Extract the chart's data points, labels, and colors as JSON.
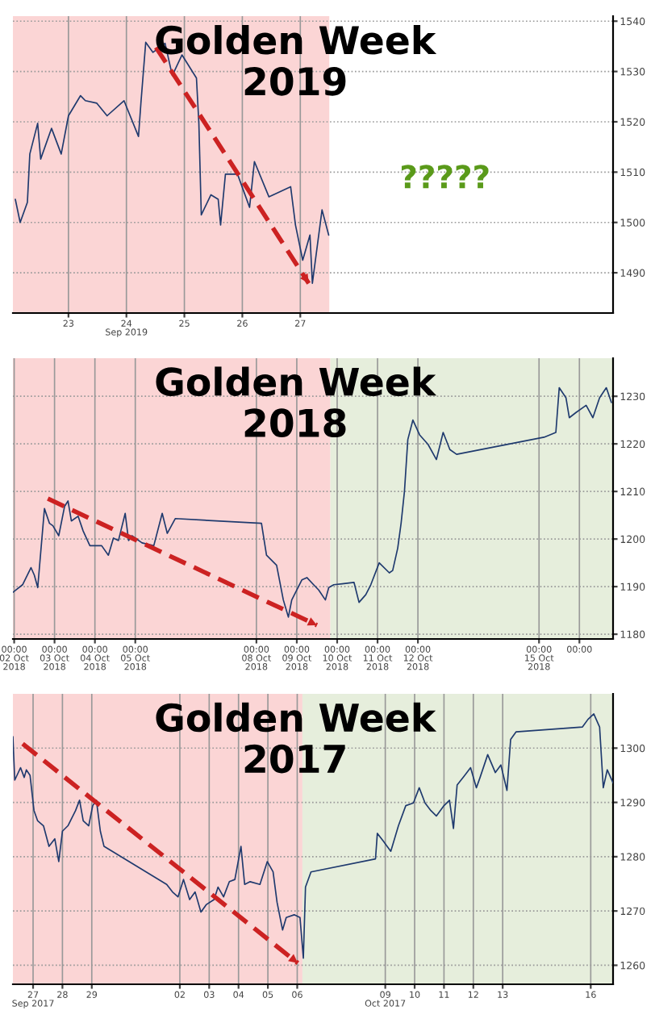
{
  "chart_data": [
    {
      "type": "line",
      "title": "Golden Week\n2019",
      "xlim": [
        "2019-09-22T13:00",
        "2019-10-02T21:30"
      ],
      "ylim": [
        1482,
        1541
      ],
      "xticks": [
        {
          "value": "2019-09-23T12:00",
          "label": "23"
        },
        {
          "value": "2019-09-24T12:00",
          "label": "24\nSep 2019"
        },
        {
          "value": "2019-09-25T12:00",
          "label": "25"
        },
        {
          "value": "2019-09-26T12:00",
          "label": "26"
        },
        {
          "value": "2019-09-27T12:00",
          "label": "27"
        }
      ],
      "yticks": [
        1490,
        1500,
        1510,
        1520,
        1530,
        1540
      ],
      "grid": true,
      "marker": "none",
      "bands": [
        {
          "axis": "x",
          "from": "2019-09-22T13:00",
          "to": "2019-09-28T00:00",
          "color": "#fbd5d5"
        }
      ],
      "annotations": [
        "?????"
      ],
      "series": [
        {
          "color": "#1f3a6e",
          "line_style": "solid",
          "x": [
            "2019-09-22T14:00",
            "2019-09-22T16:00",
            "2019-09-22T19:00",
            "2019-09-22T20:00",
            "2019-09-22T23:15",
            "2019-09-23T00:30",
            "2019-09-23T05:00",
            "2019-09-23T09:00",
            "2019-09-23T12:00",
            "2019-09-23T17:00",
            "2019-09-23T19:00",
            "2019-09-23T23:45",
            "2019-09-24T04:00",
            "2019-09-24T11:00",
            "2019-09-24T17:00",
            "2019-09-24T18:00",
            "2019-09-24T20:00",
            "2019-09-24T23:00",
            "2019-09-25T04:00",
            "2019-09-25T07:00",
            "2019-09-25T11:00",
            "2019-09-25T17:00",
            "2019-09-25T18:00",
            "2019-09-25T19:00",
            "2019-09-25T23:00",
            "2019-09-26T02:00",
            "2019-09-26T03:00",
            "2019-09-26T05:00",
            "2019-09-26T10:00",
            "2019-09-26T15:00",
            "2019-09-26T17:00",
            "2019-09-26T23:00",
            "2019-09-27T08:00",
            "2019-09-27T10:00",
            "2019-09-27T13:00",
            "2019-09-27T16:00",
            "2019-09-27T17:00",
            "2019-09-27T21:00",
            "2019-09-27T23:45"
          ],
          "values": [
            1504.6,
            1500.0,
            1504.0,
            1513.6,
            1519.7,
            1512.6,
            1518.7,
            1513.6,
            1521.2,
            1525.2,
            1524.2,
            1523.7,
            1521.2,
            1524.2,
            1517.1,
            1523.7,
            1535.8,
            1533.8,
            1535.6,
            1529.2,
            1533.3,
            1528.7,
            1519.7,
            1501.5,
            1505.5,
            1504.6,
            1499.5,
            1509.6,
            1509.6,
            1503.0,
            1512.1,
            1505.1,
            1507.1,
            1499.5,
            1492.5,
            1497.5,
            1487.9,
            1502.5,
            1497.5
          ]
        },
        {
          "type": "line",
          "color": "#cc2222",
          "line_style": "dashed",
          "x": [
            "2019-09-25T00:15",
            "2019-09-27T15:30"
          ],
          "values": [
            1534.8,
            1487.9
          ]
        }
      ]
    },
    {
      "type": "line",
      "title": "Golden Week\n2018",
      "xlim": [
        "2018-10-01T23:15",
        "2018-10-16T20:00"
      ],
      "ylim": [
        1179,
        1238
      ],
      "xticks": [
        {
          "value": "2018-10-02T00:00",
          "label": "00:00\n02 Oct\n2018"
        },
        {
          "value": "2018-10-03T00:00",
          "label": "00:00\n03 Oct\n2018"
        },
        {
          "value": "2018-10-04T00:00",
          "label": "00:00\n04 Oct\n2018"
        },
        {
          "value": "2018-10-05T00:00",
          "label": "00:00\n05 Oct\n2018"
        },
        {
          "value": "2018-10-08T00:00",
          "label": "00:00\n08 Oct\n2018"
        },
        {
          "value": "2018-10-09T00:00",
          "label": "00:00\n09 Oct\n2018"
        },
        {
          "value": "2018-10-10T00:00",
          "label": "00:00\n10 Oct\n2018"
        },
        {
          "value": "2018-10-11T00:00",
          "label": "00:00\n11 Oct\n2018"
        },
        {
          "value": "2018-10-12T00:00",
          "label": "00:00\n12 Oct\n2018"
        },
        {
          "value": "2018-10-15T00:00",
          "label": "00:00\n15 Oct\n2018"
        },
        {
          "value": "2018-10-16T00:00",
          "label": "00:00"
        }
      ],
      "yticks": [
        1180,
        1190,
        1200,
        1210,
        1220,
        1230
      ],
      "grid": true,
      "marker": "none",
      "bands": [
        {
          "axis": "x",
          "from": "2018-10-01T23:15",
          "to": "2018-10-09T20:00",
          "color": "#fbd5d5"
        },
        {
          "axis": "x",
          "from": "2018-10-09T20:00",
          "to": "2018-10-16T20:00",
          "color": "#e6eedc"
        }
      ],
      "series": [
        {
          "color": "#1f3a6e",
          "line_style": "solid",
          "x": [
            "2018-10-01T23:15",
            "2018-10-02T05:00",
            "2018-10-02T10:00",
            "2018-10-02T12:00",
            "2018-10-02T14:00",
            "2018-10-02T18:00",
            "2018-10-02T21:00",
            "2018-10-02T23:00",
            "2018-10-03T02:30",
            "2018-10-03T06:00",
            "2018-10-03T08:00",
            "2018-10-03T10:00",
            "2018-10-03T14:00",
            "2018-10-03T17:00",
            "2018-10-03T21:00",
            "2018-10-04T04:00",
            "2018-10-04T08:00",
            "2018-10-04T11:00",
            "2018-10-04T14:00",
            "2018-10-04T18:00",
            "2018-10-04T20:00",
            "2018-10-04T22:00",
            "2018-10-05T04:00",
            "2018-10-05T11:00",
            "2018-10-05T16:00",
            "2018-10-05T19:00",
            "2018-10-05T23:45",
            "2018-10-08T03:00",
            "2018-10-08T06:00",
            "2018-10-08T12:00",
            "2018-10-08T16:00",
            "2018-10-08T19:00",
            "2018-10-08T21:00",
            "2018-10-09T03:00",
            "2018-10-09T06:00",
            "2018-10-09T10:00",
            "2018-10-09T13:00",
            "2018-10-09T17:00",
            "2018-10-09T19:00",
            "2018-10-09T22:00",
            "2018-10-10T03:00",
            "2018-10-10T10:00",
            "2018-10-10T13:00",
            "2018-10-10T17:00",
            "2018-10-10T20:00",
            "2018-10-11T01:00",
            "2018-10-11T07:00",
            "2018-10-11T09:00",
            "2018-10-11T12:00",
            "2018-10-11T14:00",
            "2018-10-11T16:00",
            "2018-10-11T18:00",
            "2018-10-11T21:00",
            "2018-10-12T01:00",
            "2018-10-12T06:00",
            "2018-10-12T11:00",
            "2018-10-12T15:00",
            "2018-10-12T19:00",
            "2018-10-12T23:00",
            "2018-10-15T03:00",
            "2018-10-15T10:00",
            "2018-10-15T12:00",
            "2018-10-15T16:00",
            "2018-10-15T18:00",
            "2018-10-15T22:00",
            "2018-10-16T04:00",
            "2018-10-16T08:00",
            "2018-10-16T12:00",
            "2018-10-16T16:00",
            "2018-10-16T19:00"
          ],
          "values": [
            1188.8,
            1190.4,
            1194.0,
            1192.4,
            1189.8,
            1206.4,
            1203.3,
            1202.8,
            1200.7,
            1206.9,
            1208.0,
            1203.8,
            1204.8,
            1201.7,
            1198.6,
            1198.6,
            1196.6,
            1200.2,
            1199.7,
            1205.4,
            1199.7,
            1200.7,
            1199.2,
            1198.6,
            1205.4,
            1201.2,
            1204.3,
            1203.3,
            1196.6,
            1194.5,
            1187.2,
            1183.6,
            1187.2,
            1191.4,
            1191.9,
            1190.4,
            1189.3,
            1187.2,
            1189.8,
            1190.4,
            1190.6,
            1190.9,
            1186.7,
            1188.3,
            1190.4,
            1195.0,
            1192.9,
            1193.4,
            1198.1,
            1203.3,
            1210.0,
            1220.9,
            1225.0,
            1221.9,
            1219.9,
            1216.7,
            1222.4,
            1218.8,
            1217.8,
            1221.4,
            1222.4,
            1231.8,
            1229.7,
            1225.5,
            1226.6,
            1228.1,
            1225.5,
            1229.7,
            1231.8,
            1228.7
          ]
        },
        {
          "type": "line",
          "color": "#cc2222",
          "line_style": "dashed",
          "x": [
            "2018-10-02T20:00",
            "2018-10-09T12:00"
          ],
          "values": [
            1208.5,
            1181.9
          ]
        }
      ]
    },
    {
      "type": "line",
      "title": "Golden Week\n2017",
      "xlim": [
        "2017-09-26T19:30",
        "2017-10-17T06:15"
      ],
      "ylim": [
        1256.5,
        1310
      ],
      "xticks": [
        {
          "value": "2017-09-27T12:00",
          "label": "27\nSep 2017"
        },
        {
          "value": "2017-09-28T12:00",
          "label": "28"
        },
        {
          "value": "2017-09-29T12:00",
          "label": "29"
        },
        {
          "value": "2017-10-02T12:00",
          "label": "02"
        },
        {
          "value": "2017-10-03T12:00",
          "label": "03"
        },
        {
          "value": "2017-10-04T12:00",
          "label": "04"
        },
        {
          "value": "2017-10-05T12:00",
          "label": "05"
        },
        {
          "value": "2017-10-06T12:00",
          "label": "06"
        },
        {
          "value": "2017-10-09T12:00",
          "label": "09\nOct 2017"
        },
        {
          "value": "2017-10-10T12:00",
          "label": "10"
        },
        {
          "value": "2017-10-11T12:00",
          "label": "11"
        },
        {
          "value": "2017-10-12T12:00",
          "label": "12"
        },
        {
          "value": "2017-10-13T12:00",
          "label": "13"
        },
        {
          "value": "2017-10-16T12:00",
          "label": "16"
        }
      ],
      "yticks": [
        1260,
        1270,
        1280,
        1290,
        1300
      ],
      "grid": true,
      "marker": "none",
      "bands": [
        {
          "axis": "x",
          "from": "2017-09-26T19:30",
          "to": "2017-10-06T16:15",
          "color": "#fbd5d5"
        },
        {
          "axis": "x",
          "from": "2017-10-06T16:15",
          "to": "2017-10-17T06:15",
          "color": "#e6eedc"
        }
      ],
      "series": [
        {
          "color": "#1f3a6e",
          "line_style": "solid",
          "x": [
            "2017-09-26T19:30",
            "2017-09-26T21:00",
            "2017-09-27T01:45",
            "2017-09-27T04:45",
            "2017-09-27T06:30",
            "2017-09-27T09:30",
            "2017-09-27T12:45",
            "2017-09-27T15:45",
            "2017-09-27T20:30",
            "2017-09-28T01:00",
            "2017-09-28T05:45",
            "2017-09-28T09:00",
            "2017-09-28T12:00",
            "2017-09-28T16:30",
            "2017-09-28T22:45",
            "2017-09-29T02:00",
            "2017-09-29T05:00",
            "2017-09-29T09:30",
            "2017-09-29T12:45",
            "2017-09-29T15:45",
            "2017-09-29T19:00",
            "2017-09-29T22:00",
            "2017-10-02T01:15",
            "2017-10-02T06:00",
            "2017-10-02T10:30",
            "2017-10-02T15:00",
            "2017-10-02T20:00",
            "2017-10-03T00:30",
            "2017-10-03T05:15",
            "2017-10-03T09:45",
            "2017-10-03T16:00",
            "2017-10-03T19:15",
            "2017-10-03T23:45",
            "2017-10-04T04:30",
            "2017-10-04T09:00",
            "2017-10-04T14:00",
            "2017-10-04T17:00",
            "2017-10-04T21:30",
            "2017-10-05T05:30",
            "2017-10-05T11:30",
            "2017-10-05T16:15",
            "2017-10-05T19:30",
            "2017-10-06T00:00",
            "2017-10-06T03:00",
            "2017-10-06T09:30",
            "2017-10-06T14:15",
            "2017-10-06T17:00",
            "2017-10-06T18:45",
            "2017-10-06T23:15",
            "2017-10-09T04:00",
            "2017-10-09T05:30",
            "2017-10-09T10:15",
            "2017-10-09T16:30",
            "2017-10-09T22:45",
            "2017-10-10T04:45",
            "2017-10-10T11:00",
            "2017-10-10T15:45",
            "2017-10-10T20:30",
            "2017-10-11T01:15",
            "2017-10-11T05:45",
            "2017-10-11T12:00",
            "2017-10-11T16:30",
            "2017-10-11T19:45",
            "2017-10-11T22:45",
            "2017-10-12T05:00",
            "2017-10-12T09:45",
            "2017-10-12T14:30",
            "2017-10-12T17:30",
            "2017-10-12T23:45",
            "2017-10-13T06:00",
            "2017-10-13T10:30",
            "2017-10-13T15:30",
            "2017-10-13T18:30",
            "2017-10-13T23:00",
            "2017-10-16T05:15",
            "2017-10-16T09:45",
            "2017-10-16T14:30",
            "2017-10-16T19:15",
            "2017-10-16T22:15",
            "2017-10-17T01:30",
            "2017-10-17T06:15"
          ],
          "values": [
            1302.1,
            1294.1,
            1296.4,
            1294.6,
            1296.0,
            1295.0,
            1288.5,
            1286.6,
            1285.7,
            1281.9,
            1283.3,
            1279.1,
            1284.7,
            1285.7,
            1288.5,
            1290.4,
            1286.6,
            1285.7,
            1289.4,
            1290.4,
            1284.7,
            1281.9,
            1274.9,
            1273.5,
            1272.6,
            1275.8,
            1272.1,
            1273.5,
            1269.8,
            1271.2,
            1272.1,
            1274.4,
            1272.6,
            1275.4,
            1275.8,
            1281.9,
            1274.9,
            1275.4,
            1274.9,
            1279.1,
            1277.2,
            1271.6,
            1266.5,
            1268.8,
            1269.3,
            1268.8,
            1261.3,
            1274.4,
            1277.2,
            1279.6,
            1284.3,
            1282.9,
            1281.0,
            1285.7,
            1289.4,
            1289.9,
            1292.7,
            1289.9,
            1288.5,
            1287.5,
            1289.4,
            1290.4,
            1285.2,
            1293.2,
            1295.0,
            1296.4,
            1292.7,
            1294.6,
            1298.8,
            1295.5,
            1296.9,
            1292.2,
            1301.6,
            1303.0,
            1303.9,
            1305.3,
            1306.3,
            1303.9,
            1292.7,
            1296.0,
            1293.6
          ]
        },
        {
          "type": "line",
          "color": "#cc2222",
          "line_style": "dashed",
          "x": [
            "2017-09-27T03:30",
            "2017-10-06T12:30"
          ],
          "values": [
            1300.8,
            1260.4
          ]
        }
      ]
    }
  ]
}
